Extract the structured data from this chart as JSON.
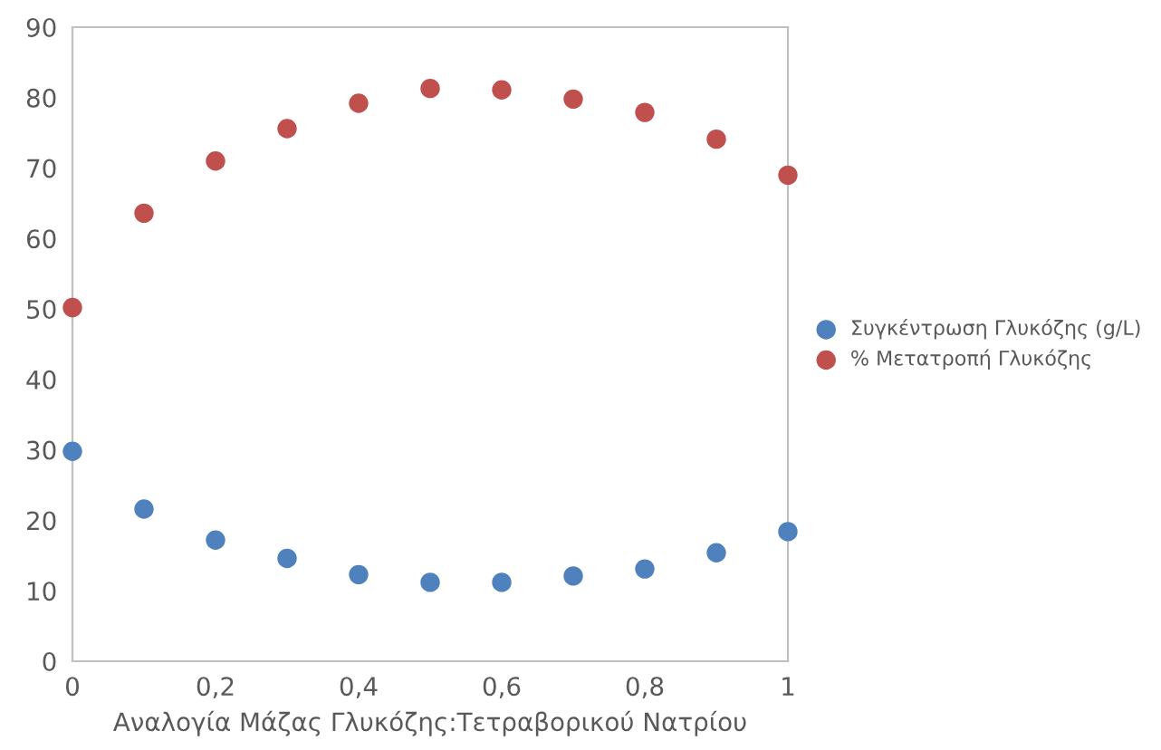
{
  "chart_data": {
    "type": "scatter",
    "xlabel": "Αναλογία Μάζας Γλυκόζης:Τετραβορικού Νατρίου",
    "x": [
      0,
      0.1,
      0.2,
      0.3,
      0.4,
      0.5,
      0.6,
      0.7,
      0.8,
      0.9,
      1
    ],
    "series": [
      {
        "name": "Συγκέντρωση Γλυκόζης (g/L)",
        "color": "#4f81bd",
        "values": [
          29.8,
          21.6,
          17.2,
          14.6,
          12.3,
          11.2,
          11.2,
          12.1,
          13.1,
          15.4,
          18.4
        ]
      },
      {
        "name": "% Μετατροπή Γλυκόζης",
        "color": "#c0504d",
        "values": [
          50.2,
          63.6,
          71.0,
          75.6,
          79.2,
          81.3,
          81.1,
          79.8,
          77.9,
          74.1,
          69.0
        ]
      }
    ],
    "xlim": [
      0,
      1
    ],
    "xticks": [
      0,
      {
        "value": 0.2,
        "label": "0,2"
      },
      {
        "value": 0.4,
        "label": "0,4"
      },
      {
        "value": 0.6,
        "label": "0,6"
      },
      {
        "value": 0.8,
        "label": "0,8"
      },
      1
    ],
    "ylim": [
      0,
      90
    ],
    "yticks": [
      0,
      10,
      20,
      30,
      40,
      50,
      60,
      70,
      80,
      90
    ],
    "grid": false,
    "legend": "right",
    "marker": "circle"
  }
}
